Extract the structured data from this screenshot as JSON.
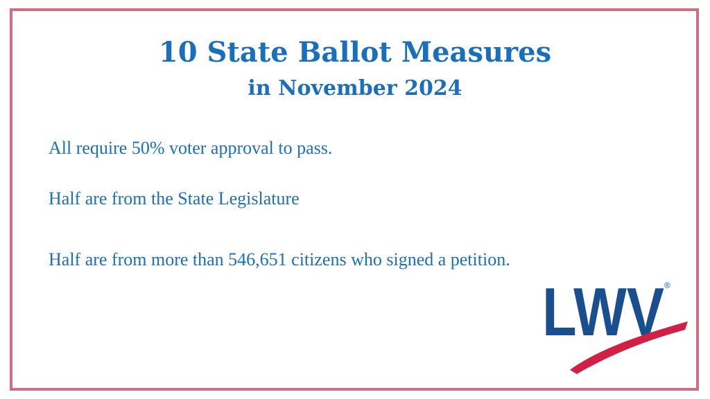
{
  "slide": {
    "title": "10 State Ballot Measures",
    "subtitle": "in November 2024",
    "lines": [
      "All require 50% voter approval to pass.",
      "Half are from the State Legislature",
      "Half are from more than 546,651 citizens who signed a petition."
    ],
    "logo": {
      "text": "LWV",
      "registered_mark": "®"
    }
  },
  "colors": {
    "border": "#d36c80",
    "text": "#1a6fbd",
    "logo_blue": "#1a4f8f",
    "logo_swoosh": "#d41f45"
  }
}
